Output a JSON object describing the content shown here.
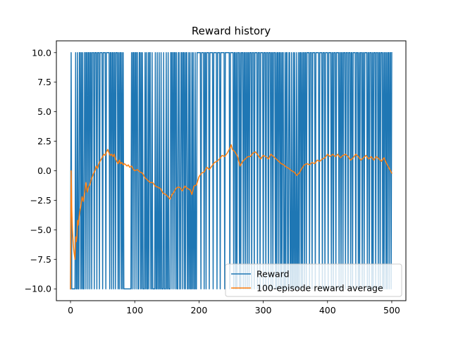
{
  "chart_data": {
    "type": "line",
    "title": "Reward history",
    "xlabel": "",
    "ylabel": "",
    "xlim": [
      -22,
      522
    ],
    "ylim": [
      -11,
      11
    ],
    "xticks": [
      0,
      100,
      200,
      300,
      400,
      500
    ],
    "yticks": [
      -10.0,
      -7.5,
      -5.0,
      -2.5,
      0.0,
      2.5,
      5.0,
      7.5,
      10.0
    ],
    "xtick_labels": [
      "0",
      "100",
      "200",
      "300",
      "400",
      "500"
    ],
    "ytick_labels": [
      "−10.0",
      "−7.5",
      "−5.0",
      "−2.5",
      "0.0",
      "2.5",
      "5.0",
      "7.5",
      "10.0"
    ],
    "grid": false,
    "legend_position": "lower right",
    "series": [
      {
        "name": "Reward",
        "color": "#1f77b4",
        "values_note": "",
        "values": [
          -10,
          10,
          -10,
          -10,
          -10,
          -10,
          -10,
          -10,
          10,
          -10,
          -10,
          10,
          -10,
          -10,
          10,
          10,
          -10,
          10,
          -10,
          10,
          -10,
          -10,
          10,
          10,
          -10,
          10,
          10,
          -10,
          10,
          10,
          -10,
          10,
          10,
          -10,
          10,
          10,
          10,
          -10,
          10,
          10,
          10,
          -10,
          10,
          10,
          10,
          -10,
          10,
          10,
          10,
          10,
          -10,
          10,
          10,
          10,
          10,
          -10,
          10,
          10,
          10,
          10,
          10,
          -10,
          10,
          10,
          -10,
          10,
          10,
          -10,
          10,
          10,
          -10,
          10,
          10,
          10,
          -10,
          10,
          -10,
          10,
          10,
          -10,
          10,
          -10,
          10,
          -10,
          -10,
          -10,
          -10,
          -10,
          -10,
          -10,
          -10,
          -10,
          -10,
          -10,
          -10,
          10,
          -10,
          10,
          10,
          -10,
          10,
          10,
          -10,
          10,
          10,
          -10,
          -10,
          10,
          10,
          -10,
          10,
          -10,
          10,
          -10,
          -10,
          -10,
          10,
          -10,
          10,
          -10,
          -10,
          10,
          -10,
          10,
          10,
          -10,
          -10,
          10,
          -10,
          -10,
          -10,
          -10,
          10,
          -10,
          -10,
          10,
          -10,
          -10,
          10,
          -10,
          -10,
          10,
          -10,
          -10,
          -10,
          10,
          -10,
          -10,
          -10,
          10,
          -10,
          -10,
          10,
          -10,
          -10,
          -10,
          10,
          10,
          -10,
          10,
          10,
          -10,
          10,
          10,
          -10,
          10,
          -10,
          -10,
          10,
          10,
          -10,
          -10,
          10,
          10,
          -10,
          10,
          10,
          -10,
          10,
          -10,
          10,
          10,
          -10,
          -10,
          10,
          -10,
          10,
          -10,
          -10,
          10,
          -10,
          10,
          -10,
          -10,
          10,
          -10,
          -10,
          10,
          10,
          10,
          10,
          10,
          10,
          -10,
          10,
          10,
          10,
          10,
          -10,
          10,
          10,
          -10,
          10,
          10,
          10,
          10,
          -10,
          10,
          10,
          10,
          10,
          10,
          -10,
          10,
          10,
          10,
          10,
          10,
          -10,
          10,
          10,
          10,
          10,
          -10,
          10,
          10,
          10,
          10,
          10,
          10,
          -10,
          10,
          10,
          10,
          10,
          10,
          10,
          10,
          -10,
          10,
          10,
          10,
          10,
          10,
          -10,
          10,
          10,
          -10,
          10,
          -10,
          10,
          10,
          10,
          -10,
          10,
          -10,
          10,
          10,
          10,
          -10,
          10,
          10,
          -10,
          10,
          10,
          -10,
          10,
          10,
          -10,
          10,
          10,
          10,
          -10,
          10,
          10,
          10,
          -10,
          10,
          10,
          10,
          10,
          -10,
          10,
          10,
          10,
          -10,
          10,
          10,
          10,
          10,
          -10,
          10,
          10,
          10,
          -10,
          10,
          10,
          10,
          -10,
          10,
          10,
          10,
          -10,
          10,
          10,
          -10,
          10,
          10,
          10,
          -10,
          10,
          -10,
          10,
          10,
          -10,
          10,
          10,
          -10,
          10,
          -10,
          10,
          10,
          -10,
          -10,
          10,
          -10,
          10,
          10,
          -10,
          -10,
          10,
          10,
          -10,
          -10,
          10,
          -10,
          -10,
          10,
          -10,
          10,
          -10,
          -10,
          10,
          -10,
          -10,
          10,
          -10,
          10,
          10,
          -10,
          10,
          -10,
          10,
          10,
          -10,
          10,
          10,
          -10,
          10,
          10,
          10,
          10,
          -10,
          10,
          10,
          10,
          -10,
          10,
          10,
          10,
          10,
          -10,
          10,
          10,
          10,
          10,
          10,
          -10,
          10,
          10,
          10,
          10,
          -10,
          10,
          10,
          10,
          -10,
          10,
          10,
          10,
          10,
          -10,
          10,
          10,
          10,
          10,
          -10,
          10,
          10,
          -10,
          10,
          10,
          10,
          -10,
          10,
          10,
          10,
          10,
          -10,
          10,
          10,
          -10,
          10,
          10,
          -10,
          10,
          10,
          10,
          -10,
          10,
          10,
          10,
          -10,
          10,
          10,
          10,
          -10,
          10,
          10,
          -10,
          10,
          10,
          10,
          10,
          -10,
          10,
          10,
          10,
          -10,
          10,
          -10,
          10,
          10,
          10,
          -10,
          10,
          10,
          -10,
          10,
          10,
          10,
          10,
          -10,
          10,
          10,
          -10,
          10,
          10,
          10,
          -10,
          10,
          -10,
          10,
          10,
          10,
          -10,
          10,
          10,
          10,
          -10,
          10,
          10,
          -10,
          10,
          10,
          10,
          -10,
          10,
          -10,
          10,
          10,
          -10,
          10,
          -10,
          10,
          10,
          -10,
          10,
          10,
          -10,
          10
        ]
      },
      {
        "name": "100-episode reward average",
        "color": "#ff7f0e",
        "points": [
          [
            0,
            -10.0
          ],
          [
            1,
            0.0
          ],
          [
            2,
            -3.3
          ],
          [
            3,
            -5.0
          ],
          [
            4,
            -6.0
          ],
          [
            5,
            -6.7
          ],
          [
            6,
            -7.1
          ],
          [
            7,
            -7.5
          ],
          [
            8,
            -5.6
          ],
          [
            9,
            -6.0
          ],
          [
            10,
            -5.5
          ],
          [
            11,
            -4.2
          ],
          [
            12,
            -4.6
          ],
          [
            14,
            -3.6
          ],
          [
            16,
            -3.0
          ],
          [
            18,
            -2.2
          ],
          [
            20,
            -2.6
          ],
          [
            22,
            -1.8
          ],
          [
            24,
            -1.0
          ],
          [
            26,
            -1.8
          ],
          [
            28,
            -1.4
          ],
          [
            30,
            -1.2
          ],
          [
            32,
            -0.8
          ],
          [
            34,
            -0.5
          ],
          [
            36,
            -0.2
          ],
          [
            38,
            0.0
          ],
          [
            40,
            0.4
          ],
          [
            42,
            0.2
          ],
          [
            44,
            0.6
          ],
          [
            46,
            0.8
          ],
          [
            48,
            1.0
          ],
          [
            50,
            1.2
          ],
          [
            52,
            1.4
          ],
          [
            54,
            1.3
          ],
          [
            56,
            1.6
          ],
          [
            58,
            1.8
          ],
          [
            60,
            1.5
          ],
          [
            62,
            1.3
          ],
          [
            64,
            1.4
          ],
          [
            66,
            1.2
          ],
          [
            68,
            1.4
          ],
          [
            70,
            1.0
          ],
          [
            72,
            0.8
          ],
          [
            74,
            0.6
          ],
          [
            76,
            0.9
          ],
          [
            78,
            0.6
          ],
          [
            80,
            0.7
          ],
          [
            82,
            0.5
          ],
          [
            84,
            0.6
          ],
          [
            86,
            0.5
          ],
          [
            88,
            0.4
          ],
          [
            90,
            0.5
          ],
          [
            92,
            0.3
          ],
          [
            95,
            0.4
          ],
          [
            98,
            0.1
          ],
          [
            100,
            0.0
          ],
          [
            104,
            0.1
          ],
          [
            108,
            -0.1
          ],
          [
            112,
            -0.2
          ],
          [
            116,
            -0.6
          ],
          [
            120,
            -0.8
          ],
          [
            124,
            -1.0
          ],
          [
            128,
            -1.0
          ],
          [
            132,
            -1.3
          ],
          [
            136,
            -1.4
          ],
          [
            140,
            -1.5
          ],
          [
            144,
            -1.9
          ],
          [
            148,
            -2.0
          ],
          [
            152,
            -2.2
          ],
          [
            155,
            -2.4
          ],
          [
            158,
            -2.0
          ],
          [
            160,
            -1.9
          ],
          [
            163,
            -1.6
          ],
          [
            166,
            -1.4
          ],
          [
            170,
            -1.4
          ],
          [
            174,
            -1.7
          ],
          [
            178,
            -1.3
          ],
          [
            182,
            -1.5
          ],
          [
            186,
            -1.6
          ],
          [
            189,
            -2.0
          ],
          [
            192,
            -1.3
          ],
          [
            196,
            -1.2
          ],
          [
            200,
            -0.5
          ],
          [
            204,
            -0.2
          ],
          [
            208,
            -0.1
          ],
          [
            212,
            0.3
          ],
          [
            216,
            0.1
          ],
          [
            220,
            0.4
          ],
          [
            224,
            0.7
          ],
          [
            228,
            0.8
          ],
          [
            232,
            1.0
          ],
          [
            236,
            1.3
          ],
          [
            240,
            1.2
          ],
          [
            244,
            1.5
          ],
          [
            248,
            1.9
          ],
          [
            250,
            2.2
          ],
          [
            252,
            1.8
          ],
          [
            256,
            1.6
          ],
          [
            260,
            1.2
          ],
          [
            264,
            0.4
          ],
          [
            268,
            0.8
          ],
          [
            272,
            1.0
          ],
          [
            276,
            1.2
          ],
          [
            280,
            1.2
          ],
          [
            284,
            1.5
          ],
          [
            288,
            1.6
          ],
          [
            292,
            1.3
          ],
          [
            296,
            1.0
          ],
          [
            300,
            1.3
          ],
          [
            304,
            1.2
          ],
          [
            308,
            1.0
          ],
          [
            312,
            1.4
          ],
          [
            316,
            1.2
          ],
          [
            320,
            1.0
          ],
          [
            324,
            0.8
          ],
          [
            328,
            0.6
          ],
          [
            332,
            0.5
          ],
          [
            336,
            0.3
          ],
          [
            340,
            0.2
          ],
          [
            344,
            0.0
          ],
          [
            348,
            -0.1
          ],
          [
            352,
            -0.4
          ],
          [
            356,
            -0.2
          ],
          [
            360,
            0.2
          ],
          [
            364,
            0.5
          ],
          [
            368,
            0.6
          ],
          [
            372,
            0.5
          ],
          [
            376,
            0.7
          ],
          [
            380,
            0.6
          ],
          [
            384,
            0.9
          ],
          [
            388,
            0.8
          ],
          [
            392,
            1.0
          ],
          [
            396,
            1.1
          ],
          [
            400,
            1.4
          ],
          [
            404,
            1.2
          ],
          [
            408,
            1.4
          ],
          [
            412,
            1.2
          ],
          [
            416,
            1.4
          ],
          [
            420,
            1.1
          ],
          [
            424,
            1.3
          ],
          [
            428,
            1.4
          ],
          [
            432,
            1.2
          ],
          [
            436,
            0.9
          ],
          [
            440,
            1.1
          ],
          [
            444,
            1.4
          ],
          [
            448,
            1.2
          ],
          [
            452,
            0.9
          ],
          [
            456,
            1.1
          ],
          [
            460,
            1.3
          ],
          [
            464,
            1.0
          ],
          [
            468,
            1.2
          ],
          [
            472,
            0.9
          ],
          [
            476,
            1.2
          ],
          [
            480,
            1.0
          ],
          [
            484,
            0.8
          ],
          [
            488,
            1.1
          ],
          [
            492,
            0.6
          ],
          [
            496,
            0.2
          ],
          [
            500,
            -0.2
          ]
        ]
      }
    ]
  }
}
